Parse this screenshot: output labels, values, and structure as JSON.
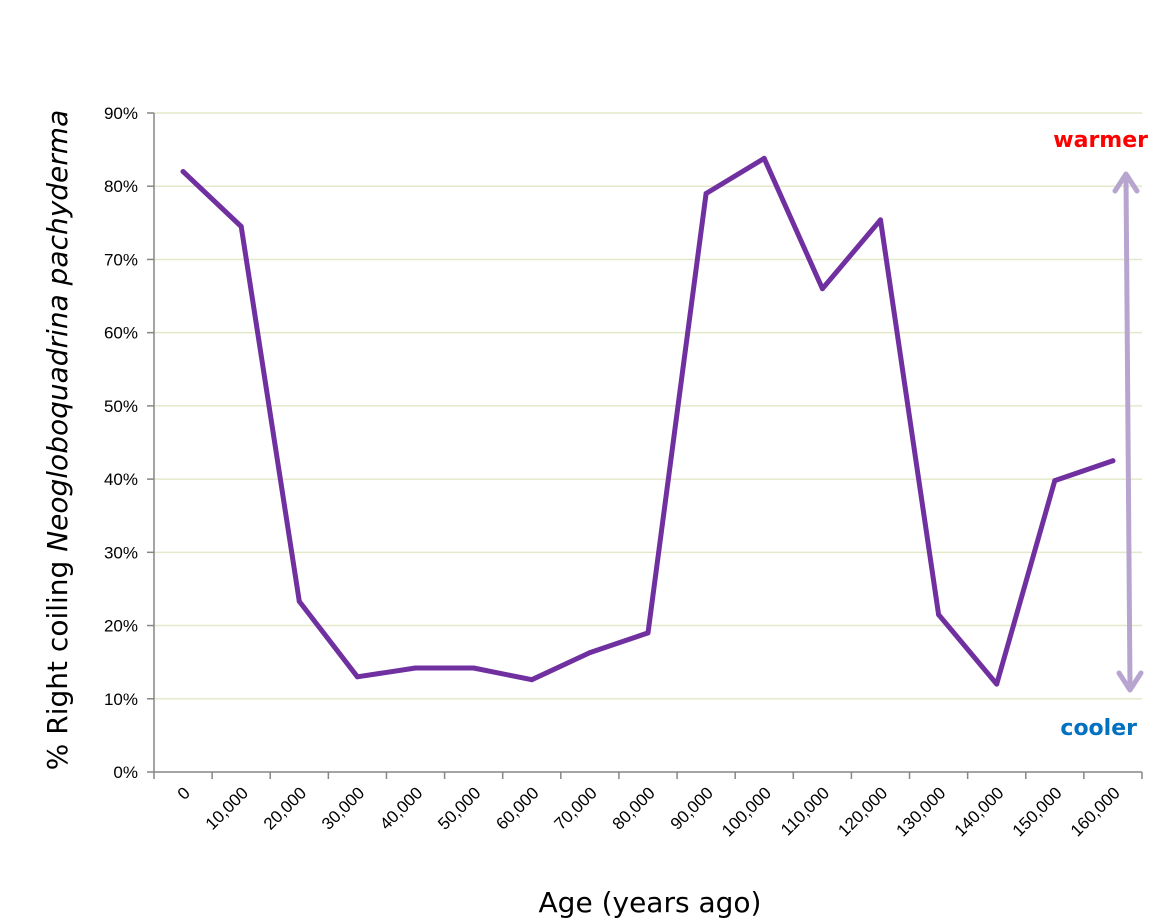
{
  "chart_data": {
    "type": "line",
    "title": "",
    "xlabel": "Age (years ago)",
    "ylabel_parts": [
      "% Right coiling ",
      "Neogloboquadrina pachyderma"
    ],
    "categories": [
      "0",
      "10,000",
      "20,000",
      "30,000",
      "40,000",
      "50,000",
      "60,000",
      "70,000",
      "80,000",
      "90,000",
      "100,000",
      "110,000",
      "120,000",
      "130,000",
      "140,000",
      "150,000",
      "160,000"
    ],
    "values": [
      82,
      74.5,
      23.3,
      13,
      14.2,
      14.2,
      12.6,
      16.3,
      19,
      79,
      83.8,
      66,
      75.4,
      21.5,
      12,
      39.8,
      42.5
    ],
    "ylim": [
      0,
      90
    ],
    "yticks": [
      0,
      10,
      20,
      30,
      40,
      50,
      60,
      70,
      80,
      90
    ],
    "ytick_labels": [
      "0%",
      "10%",
      "20%",
      "30%",
      "40%",
      "50%",
      "60%",
      "70%",
      "80%",
      "90%"
    ],
    "grid": true,
    "legend": "none",
    "line_color": "#7030A0",
    "grid_color": "#E3E9C9",
    "annotations": {
      "warmer": {
        "text": "warmer",
        "color": "#FF0000"
      },
      "cooler": {
        "text": "cooler",
        "color": "#0070C0"
      },
      "arrow_color": "#B7A5D0"
    }
  }
}
